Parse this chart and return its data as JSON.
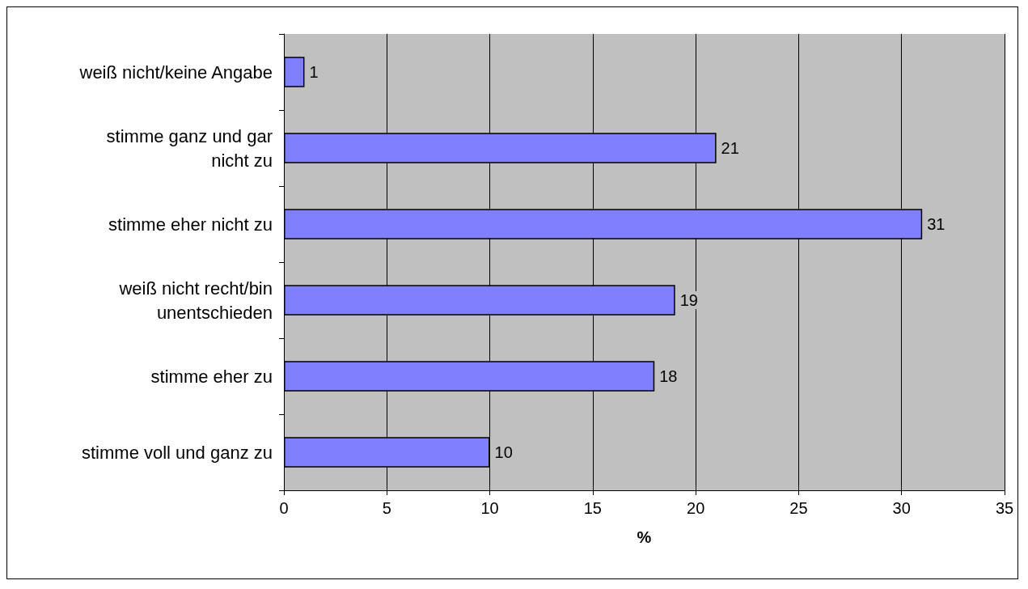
{
  "chart_data": {
    "type": "bar",
    "orientation": "horizontal",
    "xlabel": "%",
    "categories": [
      "weiß nicht/keine Angabe",
      "stimme ganz und gar nicht zu",
      "stimme eher nicht zu",
      "weiß nicht recht/bin unentschieden",
      "stimme eher zu",
      "stimme voll und ganz zu"
    ],
    "values": [
      1,
      21,
      31,
      19,
      18,
      10
    ],
    "color": "#8080ff",
    "xlim": [
      0,
      35
    ],
    "xticks": [
      0,
      5,
      10,
      15,
      20,
      25,
      30,
      35
    ],
    "grid": "x",
    "data_labels": true
  }
}
